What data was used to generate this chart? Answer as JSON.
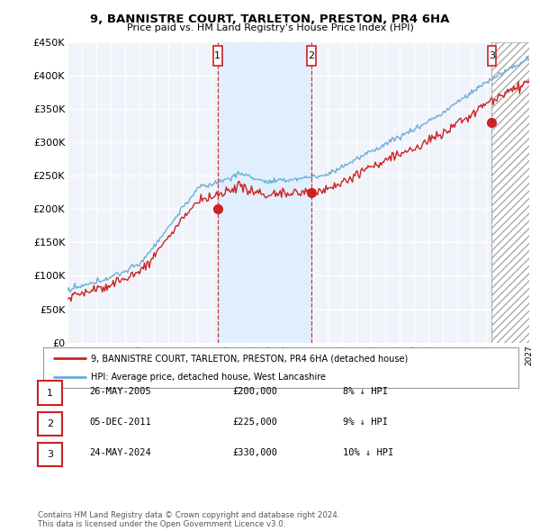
{
  "title": "9, BANNISTRE COURT, TARLETON, PRESTON, PR4 6HA",
  "subtitle": "Price paid vs. HM Land Registry's House Price Index (HPI)",
  "ylim": [
    0,
    450000
  ],
  "yticks": [
    0,
    50000,
    100000,
    150000,
    200000,
    250000,
    300000,
    350000,
    400000,
    450000
  ],
  "ytick_labels": [
    "£0",
    "£50K",
    "£100K",
    "£150K",
    "£200K",
    "£250K",
    "£300K",
    "£350K",
    "£400K",
    "£450K"
  ],
  "xstart_year": 1995,
  "xend_year": 2027,
  "hpi_color": "#6baed6",
  "price_color": "#cc2222",
  "vline_color": "#cc2222",
  "sale_points": [
    {
      "year": 2005.4,
      "price": 200000,
      "label": "1"
    },
    {
      "year": 2011.9,
      "price": 225000,
      "label": "2"
    },
    {
      "year": 2024.4,
      "price": 330000,
      "label": "3"
    }
  ],
  "shade_between_1_2": true,
  "shade_color": "#ddeeff",
  "hatch_after_3": true,
  "hatch_color": "#aaaaaa",
  "legend_price_label": "9, BANNISTRE COURT, TARLETON, PRESTON, PR4 6HA (detached house)",
  "legend_hpi_label": "HPI: Average price, detached house, West Lancashire",
  "table_rows": [
    {
      "num": "1",
      "date": "26-MAY-2005",
      "price": "£200,000",
      "pct": "8% ↓ HPI"
    },
    {
      "num": "2",
      "date": "05-DEC-2011",
      "price": "£225,000",
      "pct": "9% ↓ HPI"
    },
    {
      "num": "3",
      "date": "24-MAY-2024",
      "price": "£330,000",
      "pct": "10% ↓ HPI"
    }
  ],
  "footnote": "Contains HM Land Registry data © Crown copyright and database right 2024.\nThis data is licensed under the Open Government Licence v3.0.",
  "bg_color": "#ffffff",
  "plot_bg_color": "#f0f4fa",
  "grid_color": "#ffffff",
  "vline3_color": "#aaaaaa"
}
